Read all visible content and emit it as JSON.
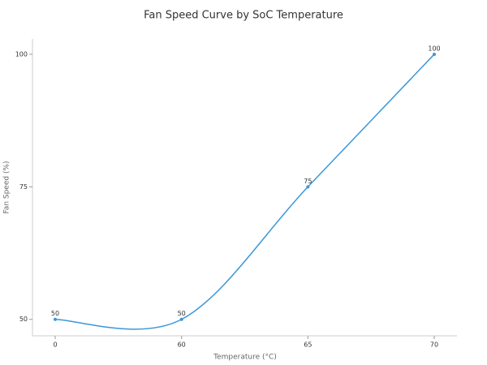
{
  "chart_data": {
    "type": "line",
    "title": "Fan Speed Curve by SoC Temperature",
    "x_label": "Temperature (°C)",
    "y_label": "Fan Speed (%)",
    "categories": [
      "0",
      "60",
      "65",
      "70"
    ],
    "values": [
      50,
      50,
      75,
      100
    ],
    "color": "#3a97d8",
    "ylim": [
      46.9,
      102.9
    ],
    "yticks": [
      50,
      75,
      100
    ],
    "smooth": true,
    "data_labels": true
  }
}
